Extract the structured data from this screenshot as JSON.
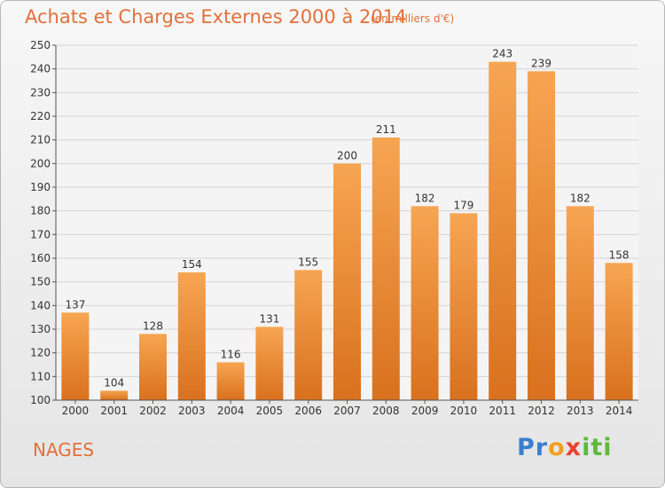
{
  "header": {
    "title": "Achats et Charges Externes 2000 à 2014",
    "unit": "(en milliers d'€)"
  },
  "footer": {
    "commune": "NAGES",
    "logo_text": "Proxiti"
  },
  "colors": {
    "bar_light": "#f7a552",
    "bar_dark": "#d9711e",
    "title": "#e2703a",
    "grid": "#d4d4d4"
  },
  "chart_data": {
    "type": "bar",
    "title": "Achats et Charges Externes 2000 à 2014",
    "subtitle": "(en milliers d'€)",
    "xlabel": "",
    "ylabel": "",
    "categories": [
      "2000",
      "2001",
      "2002",
      "2003",
      "2004",
      "2005",
      "2006",
      "2007",
      "2008",
      "2009",
      "2010",
      "2011",
      "2012",
      "2013",
      "2014"
    ],
    "values": [
      137,
      104,
      128,
      154,
      116,
      131,
      155,
      200,
      211,
      182,
      179,
      243,
      239,
      182,
      158
    ],
    "ylim": [
      100,
      250
    ],
    "yticks": [
      100,
      110,
      120,
      130,
      140,
      150,
      160,
      170,
      180,
      190,
      200,
      210,
      220,
      230,
      240,
      250
    ],
    "grid": true,
    "legend": "none"
  }
}
